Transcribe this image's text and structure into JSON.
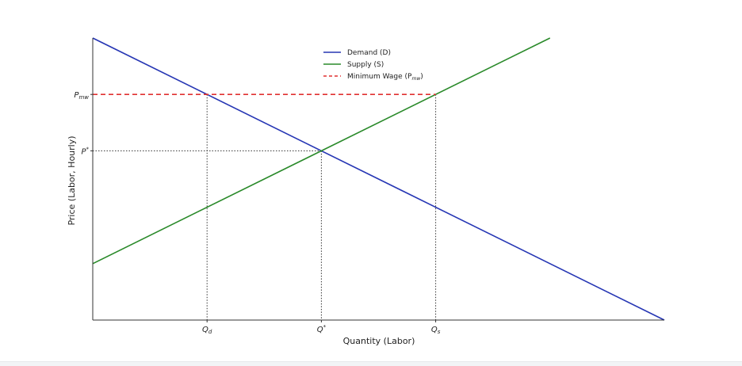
{
  "chart_data": {
    "type": "line",
    "title": "",
    "xlabel": "Quantity (Labor)",
    "ylabel": "Price (Labor, Hourly)",
    "xlim": [
      0,
      10
    ],
    "ylim": [
      0,
      10
    ],
    "grid": false,
    "legend_position": "top-center",
    "series": [
      {
        "name": "Demand (D)",
        "color": "#2636b4",
        "style": "solid",
        "x": [
          0,
          10
        ],
        "y": [
          10,
          0
        ]
      },
      {
        "name": "Supply (S)",
        "color": "#2a8a2a",
        "style": "solid",
        "x": [
          0,
          8
        ],
        "y": [
          2,
          10
        ]
      },
      {
        "name": "Minimum Wage (P_mw)",
        "color": "#e03030",
        "style": "dashed",
        "x": [
          0,
          6
        ],
        "y": [
          8,
          8
        ]
      }
    ],
    "equilibrium": {
      "q": 4,
      "p": 6
    },
    "minimum_wage": {
      "p": 8,
      "q_demanded": 2,
      "q_supplied": 6
    },
    "y_ticks": [
      {
        "value": 8,
        "label": "P",
        "sub": "mw",
        "sup": ""
      },
      {
        "value": 6,
        "label": "P",
        "sub": "",
        "sup": "*"
      }
    ],
    "x_ticks": [
      {
        "value": 2,
        "label": "Q",
        "sub": "d",
        "sup": ""
      },
      {
        "value": 4,
        "label": "Q",
        "sub": "",
        "sup": "*"
      },
      {
        "value": 6,
        "label": "Q",
        "sub": "s",
        "sup": ""
      }
    ],
    "legend": [
      {
        "label": "Demand (D)",
        "sub": "",
        "tail": ""
      },
      {
        "label": "Supply (S)",
        "sub": "",
        "tail": ""
      },
      {
        "label": "Minimum Wage (P",
        "sub": "mw",
        "tail": ")"
      }
    ]
  }
}
